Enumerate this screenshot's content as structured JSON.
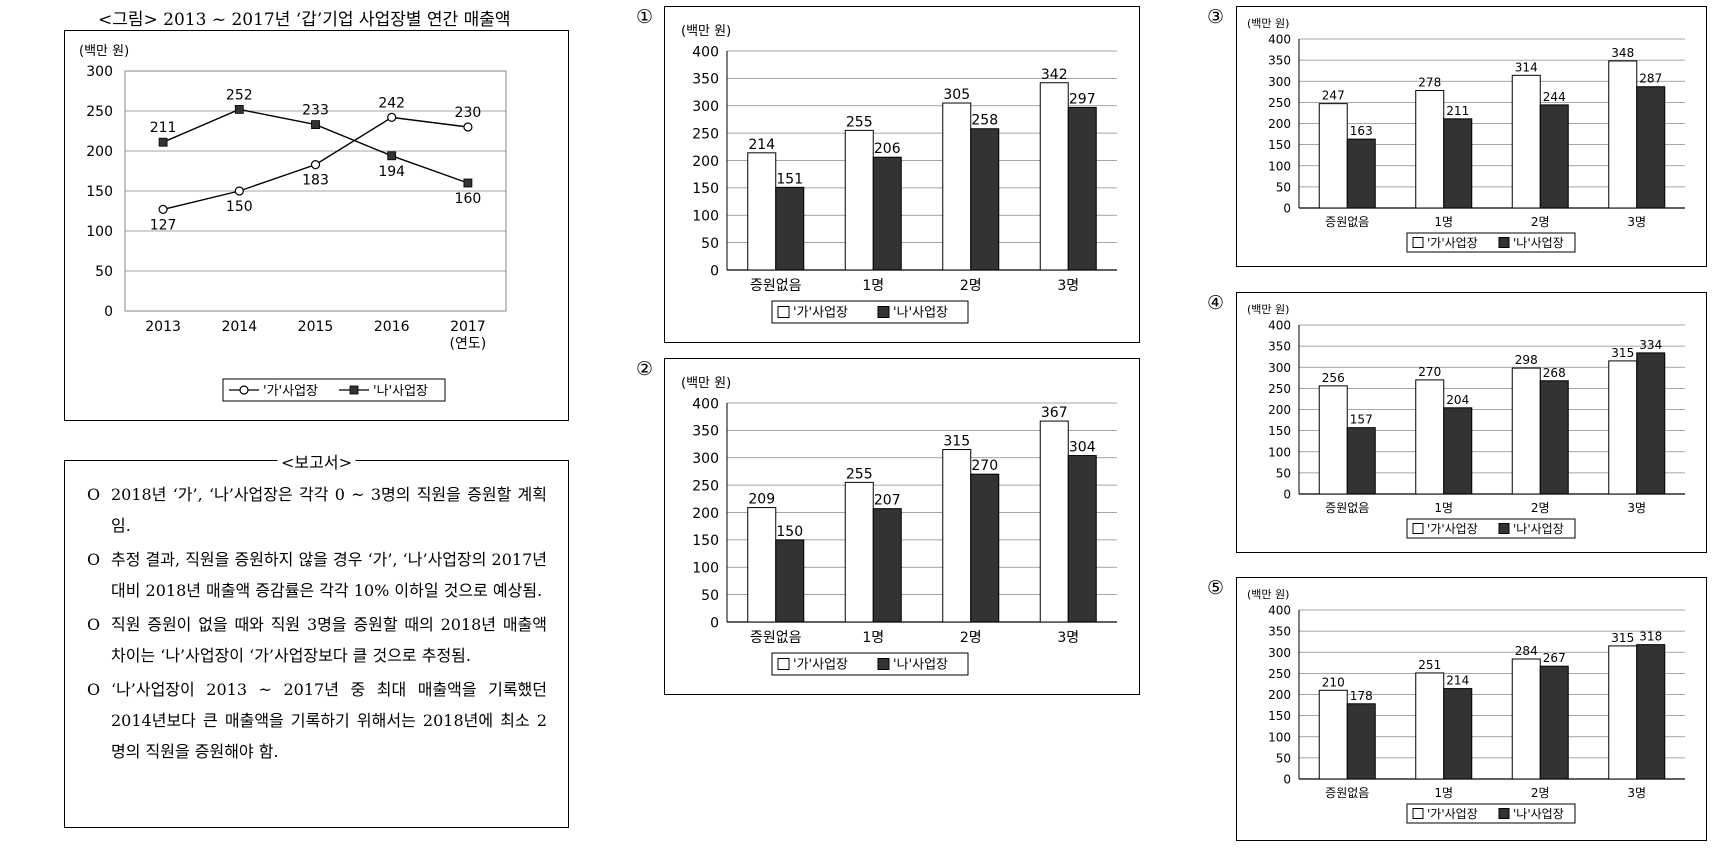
{
  "figure": {
    "title": "<그림> 2013 ~ 2017년 ‘갑’기업 사업장별 연간 매출액",
    "chart_data": {
      "type": "line",
      "unit_label": "(백만 원)",
      "x": [
        "2013",
        "2014",
        "2015",
        "2016",
        "2017"
      ],
      "x_axis_label": "(연도)",
      "ylim": [
        0,
        300
      ],
      "yticks": [
        0,
        50,
        100,
        150,
        200,
        250,
        300
      ],
      "grid": "horizontal",
      "legend_position": "bottom",
      "series": [
        {
          "name": "'가'사업장",
          "marker": "open-circle",
          "values": [
            127,
            150,
            183,
            242,
            230
          ]
        },
        {
          "name": "'나'사업장",
          "marker": "filled-square",
          "values": [
            211,
            252,
            233,
            194,
            160
          ]
        }
      ]
    }
  },
  "report": {
    "title": "<보고서>",
    "bullet": "O",
    "items": [
      "2018년 ‘가’, ‘나’사업장은 각각 0 ~ 3명의 직원을 증원할 계획임.",
      "추정 결과, 직원을 증원하지 않을 경우 ‘가’, ‘나’사업장의 2017년 대비 2018년 매출액 증감률은 각각 10% 이하일 것으로 예상됨.",
      "직원 증원이 없을 때와 직원 3명을 증원할 때의 2018년 매출액 차이는 ‘나’사업장이 ‘가’사업장보다 클 것으로 추정됨.",
      "‘나’사업장이 2013 ~ 2017년 중 최대 매출액을 기록했던 2014년보다 큰 매출액을 기록하기 위해서는 2018년에 최소 2명의 직원을 증원해야 함."
    ]
  },
  "options": [
    {
      "label": "①",
      "chart_data": {
        "type": "bar",
        "unit_label": "(백만 원)",
        "categories": [
          "증원없음",
          "1명",
          "2명",
          "3명"
        ],
        "ylim": [
          0,
          400
        ],
        "yticks": [
          0,
          50,
          100,
          150,
          200,
          250,
          300,
          350,
          400
        ],
        "grid": "horizontal",
        "legend_position": "bottom",
        "series": [
          {
            "name": "'가'사업장",
            "fill": "#ffffff",
            "values": [
              214,
              255,
              305,
              342
            ]
          },
          {
            "name": "'나'사업장",
            "fill": "#333333",
            "values": [
              151,
              206,
              258,
              297
            ]
          }
        ]
      }
    },
    {
      "label": "②",
      "chart_data": {
        "type": "bar",
        "unit_label": "(백만 원)",
        "categories": [
          "증원없음",
          "1명",
          "2명",
          "3명"
        ],
        "ylim": [
          0,
          400
        ],
        "yticks": [
          0,
          50,
          100,
          150,
          200,
          250,
          300,
          350,
          400
        ],
        "grid": "horizontal",
        "legend_position": "bottom",
        "series": [
          {
            "name": "'가'사업장",
            "fill": "#ffffff",
            "values": [
              209,
              255,
              315,
              367
            ]
          },
          {
            "name": "'나'사업장",
            "fill": "#333333",
            "values": [
              150,
              207,
              270,
              304
            ]
          }
        ]
      }
    },
    {
      "label": "③",
      "chart_data": {
        "type": "bar",
        "unit_label": "(백만 원)",
        "categories": [
          "증원없음",
          "1명",
          "2명",
          "3명"
        ],
        "ylim": [
          0,
          400
        ],
        "yticks": [
          0,
          50,
          100,
          150,
          200,
          250,
          300,
          350,
          400
        ],
        "grid": "horizontal",
        "legend_position": "bottom",
        "series": [
          {
            "name": "'가'사업장",
            "fill": "#ffffff",
            "values": [
              247,
              278,
              314,
              348
            ]
          },
          {
            "name": "'나'사업장",
            "fill": "#333333",
            "values": [
              163,
              211,
              244,
              287
            ]
          }
        ]
      }
    },
    {
      "label": "④",
      "chart_data": {
        "type": "bar",
        "unit_label": "(백만 원)",
        "categories": [
          "증원없음",
          "1명",
          "2명",
          "3명"
        ],
        "ylim": [
          0,
          400
        ],
        "yticks": [
          0,
          50,
          100,
          150,
          200,
          250,
          300,
          350,
          400
        ],
        "grid": "horizontal",
        "legend_position": "bottom",
        "series": [
          {
            "name": "'가'사업장",
            "fill": "#ffffff",
            "values": [
              256,
              270,
              298,
              315
            ]
          },
          {
            "name": "'나'사업장",
            "fill": "#333333",
            "values": [
              157,
              204,
              268,
              334
            ]
          }
        ]
      }
    },
    {
      "label": "⑤",
      "chart_data": {
        "type": "bar",
        "unit_label": "(백만 원)",
        "categories": [
          "증원없음",
          "1명",
          "2명",
          "3명"
        ],
        "ylim": [
          0,
          400
        ],
        "yticks": [
          0,
          50,
          100,
          150,
          200,
          250,
          300,
          350,
          400
        ],
        "grid": "horizontal",
        "legend_position": "bottom",
        "series": [
          {
            "name": "'가'사업장",
            "fill": "#ffffff",
            "values": [
              210,
              251,
              284,
              315
            ]
          },
          {
            "name": "'나'사업장",
            "fill": "#333333",
            "values": [
              178,
              214,
              267,
              318
            ]
          }
        ]
      }
    }
  ]
}
